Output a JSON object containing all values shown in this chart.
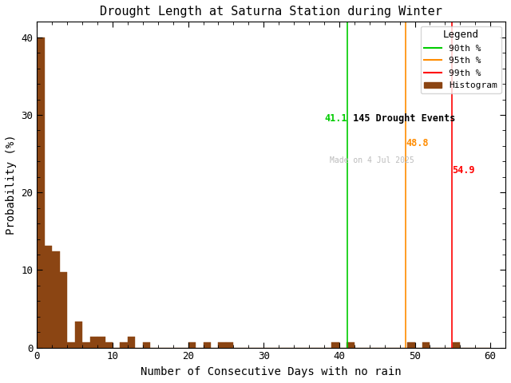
{
  "title": "Drought Length at Saturna Station during Winter",
  "xlabel": "Number of Consecutive Days with no rain",
  "ylabel": "Probability (%)",
  "bar_color": "#8B4513",
  "bar_edgecolor": "#8B4513",
  "xlim": [
    0,
    62
  ],
  "ylim": [
    0,
    42
  ],
  "xticks": [
    0,
    10,
    20,
    30,
    40,
    50,
    60
  ],
  "yticks": [
    0,
    10,
    20,
    30,
    40
  ],
  "background_color": "white",
  "percentile_90": 41.1,
  "percentile_95": 48.8,
  "percentile_99": 54.9,
  "percentile_90_color": "#00CC00",
  "percentile_95_color": "#FF8C00",
  "percentile_99_color": "#FF0000",
  "n_events": 145,
  "watermark": "Made on 4 Jul 2025",
  "watermark_color": "#BBBBBB",
  "annotation_90_color": "#00CC00",
  "annotation_95_color": "#FF8C00",
  "annotation_99_color": "#FF0000",
  "annotation_n_color": "#000000",
  "bin_edges": [
    0,
    1,
    2,
    3,
    4,
    5,
    6,
    7,
    8,
    9,
    10,
    11,
    12,
    13,
    14,
    15,
    16,
    17,
    18,
    19,
    20,
    21,
    22,
    23,
    24,
    25,
    26,
    27,
    28,
    29,
    30,
    31,
    32,
    33,
    34,
    35,
    36,
    37,
    38,
    39,
    40,
    41,
    42,
    43,
    44,
    45,
    46,
    47,
    48,
    49,
    50,
    51,
    52,
    53,
    54,
    55,
    56,
    57,
    58,
    59,
    60
  ],
  "bin_values": [
    40.0,
    13.1,
    12.4,
    9.7,
    0.7,
    3.4,
    0.7,
    1.4,
    1.4,
    0.7,
    0.0,
    0.7,
    1.4,
    0.0,
    0.7,
    0.0,
    0.0,
    0.0,
    0.0,
    0.0,
    0.7,
    0.0,
    0.7,
    0.0,
    0.7,
    0.7,
    0.0,
    0.0,
    0.0,
    0.0,
    0.0,
    0.0,
    0.0,
    0.0,
    0.0,
    0.0,
    0.0,
    0.0,
    0.0,
    0.7,
    0.0,
    0.7,
    0.0,
    0.0,
    0.0,
    0.0,
    0.0,
    0.0,
    0.0,
    0.7,
    0.0,
    0.7,
    0.0,
    0.0,
    0.0,
    0.7,
    0.0,
    0.0,
    0.0,
    0.0
  ]
}
